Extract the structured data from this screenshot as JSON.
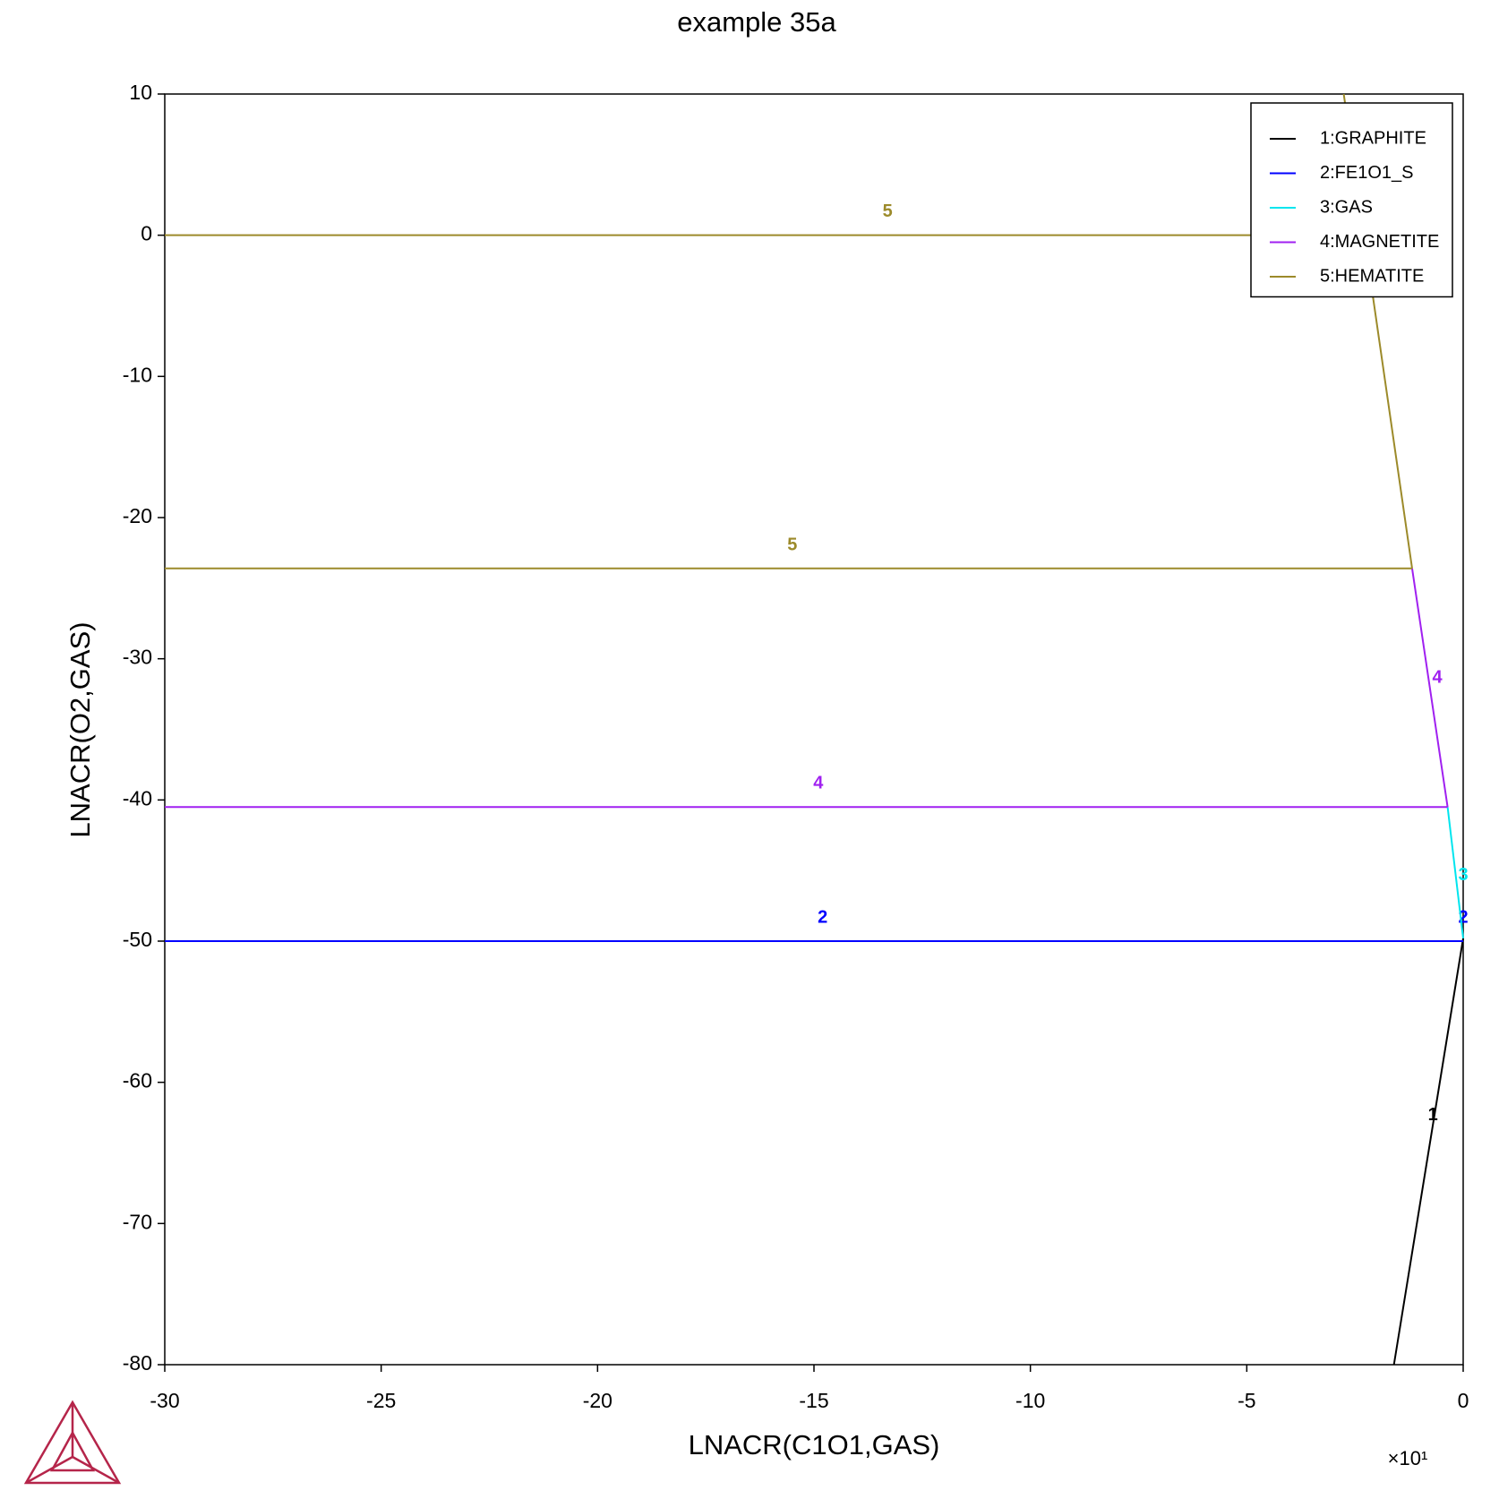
{
  "chart_data": {
    "type": "line",
    "title": "example 35a",
    "xlabel": "LNACR(C1O1,GAS)",
    "ylabel": "LNACR(O2,GAS)",
    "x_multiplier": "×10¹",
    "xlim": [
      -30,
      0
    ],
    "xticks": [
      -30,
      -25,
      -20,
      -15,
      -10,
      -5,
      0
    ],
    "ylim": [
      -80,
      10
    ],
    "yticks": [
      -80,
      -70,
      -60,
      -50,
      -40,
      -30,
      -20,
      -10,
      0,
      10
    ],
    "legend": "upper right",
    "series": [
      {
        "name": "1:GRAPHITE",
        "color": "#000000",
        "segments": [
          {
            "x": [
              0,
              -1.6
            ],
            "y": [
              -49.8,
              -80
            ]
          }
        ],
        "labels": [
          {
            "text": "1",
            "x": -0.7,
            "y": -63
          }
        ]
      },
      {
        "name": "2:FE1O1_S",
        "color": "#0000ff",
        "segments": [
          {
            "x": [
              -30,
              0
            ],
            "y": [
              -50,
              -50
            ]
          }
        ],
        "labels": [
          {
            "text": "2",
            "x": -14.8,
            "y": -49
          },
          {
            "text": "2",
            "x": 0,
            "y": -49
          }
        ]
      },
      {
        "name": "3:GAS",
        "color": "#00e5ee",
        "segments": [
          {
            "x": [
              -0.36,
              0
            ],
            "y": [
              -40.5,
              -49.8
            ]
          }
        ],
        "labels": [
          {
            "text": "3",
            "x": 0,
            "y": -46
          }
        ]
      },
      {
        "name": "4:MAGNETITE",
        "color": "#a020f0",
        "segments": [
          {
            "x": [
              -30,
              -0.36
            ],
            "y": [
              -40.5,
              -40.5
            ]
          },
          {
            "x": [
              -1.18,
              -0.36
            ],
            "y": [
              -23.6,
              -40.5
            ]
          }
        ],
        "labels": [
          {
            "text": "4",
            "x": -14.9,
            "y": -39.5
          },
          {
            "text": "4",
            "x": -0.6,
            "y": -32
          }
        ]
      },
      {
        "name": "5:HEMATITE",
        "color": "#9c8a2a",
        "segments": [
          {
            "x": [
              -30,
              -2.29
            ],
            "y": [
              0,
              0
            ]
          },
          {
            "x": [
              -30,
              -1.18
            ],
            "y": [
              -23.6,
              -23.6
            ]
          },
          {
            "x": [
              -2.76,
              -1.18
            ],
            "y": [
              10,
              -23.6
            ]
          }
        ],
        "labels": [
          {
            "text": "5",
            "x": -13.3,
            "y": 1
          },
          {
            "text": "5",
            "x": -15.5,
            "y": -22.6
          }
        ]
      }
    ]
  }
}
